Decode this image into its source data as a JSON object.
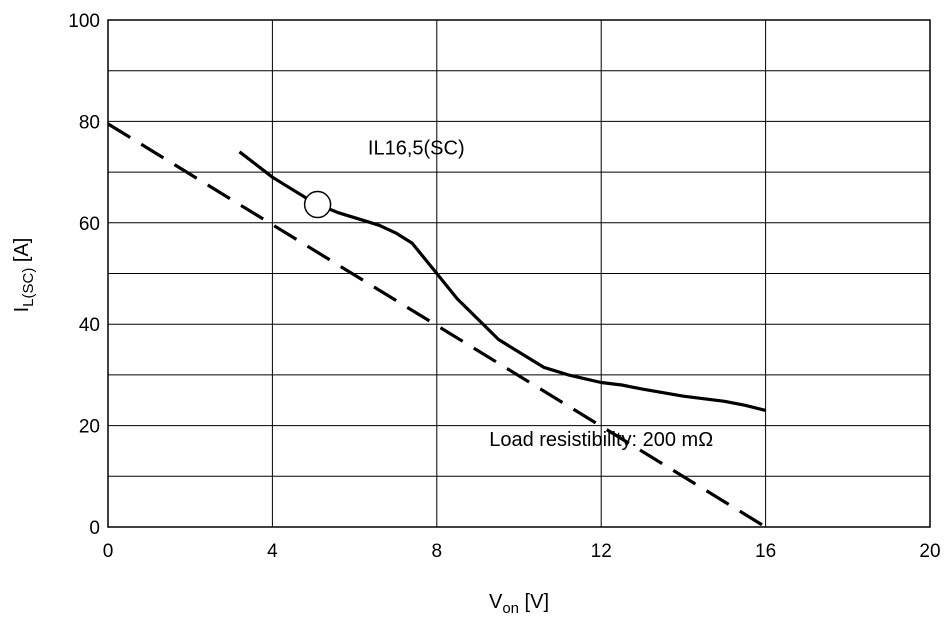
{
  "chart_data": {
    "type": "line",
    "title": "",
    "xlabel": {
      "main": "V",
      "sub": "on",
      "unit": " [V]"
    },
    "ylabel": {
      "main": "I",
      "sub": "L(SC)",
      "unit": " [A]"
    },
    "xlim": [
      0,
      20
    ],
    "ylim": [
      0,
      100
    ],
    "xticks": [
      0,
      4,
      8,
      12,
      16,
      20
    ],
    "yticks": [
      0,
      20,
      40,
      60,
      80,
      100
    ],
    "x_gridlines": [
      0,
      4,
      8,
      12,
      16,
      20
    ],
    "y_gridlines": [
      0,
      10,
      20,
      30,
      40,
      50,
      60,
      70,
      80,
      90,
      100
    ],
    "grid": true,
    "series": [
      {
        "style": "solid",
        "x": [
          3.2,
          4.0,
          4.4,
          5.0,
          5.6,
          6.0,
          6.6,
          7.0,
          7.4,
          8.0,
          8.5,
          9.0,
          9.5,
          10.0,
          10.6,
          11.2,
          12.0,
          12.5,
          13.0,
          14.0,
          15.0,
          15.5,
          16.0
        ],
        "y": [
          74,
          69,
          67,
          64,
          62,
          61,
          59.5,
          58,
          56,
          50,
          45,
          41,
          37,
          34.5,
          31.5,
          30,
          28.5,
          28,
          27.2,
          25.8,
          24.8,
          24,
          23
        ]
      },
      {
        "style": "dashed",
        "x": [
          0,
          16
        ],
        "y": [
          79.5,
          0
        ]
      }
    ],
    "annotations": [
      {
        "text": "IL16,5(SC)",
        "x": 7.5,
        "y": 73.5
      },
      {
        "text": "Load resistibility: 200 mΩ",
        "x": 12,
        "y": 16
      }
    ],
    "marker": {
      "shape": "circle",
      "x": 5.1,
      "y": 63.6,
      "fill": "#ffffff"
    },
    "colors": {
      "line": "#000000",
      "grid": "#000000",
      "background": "#ffffff"
    }
  }
}
